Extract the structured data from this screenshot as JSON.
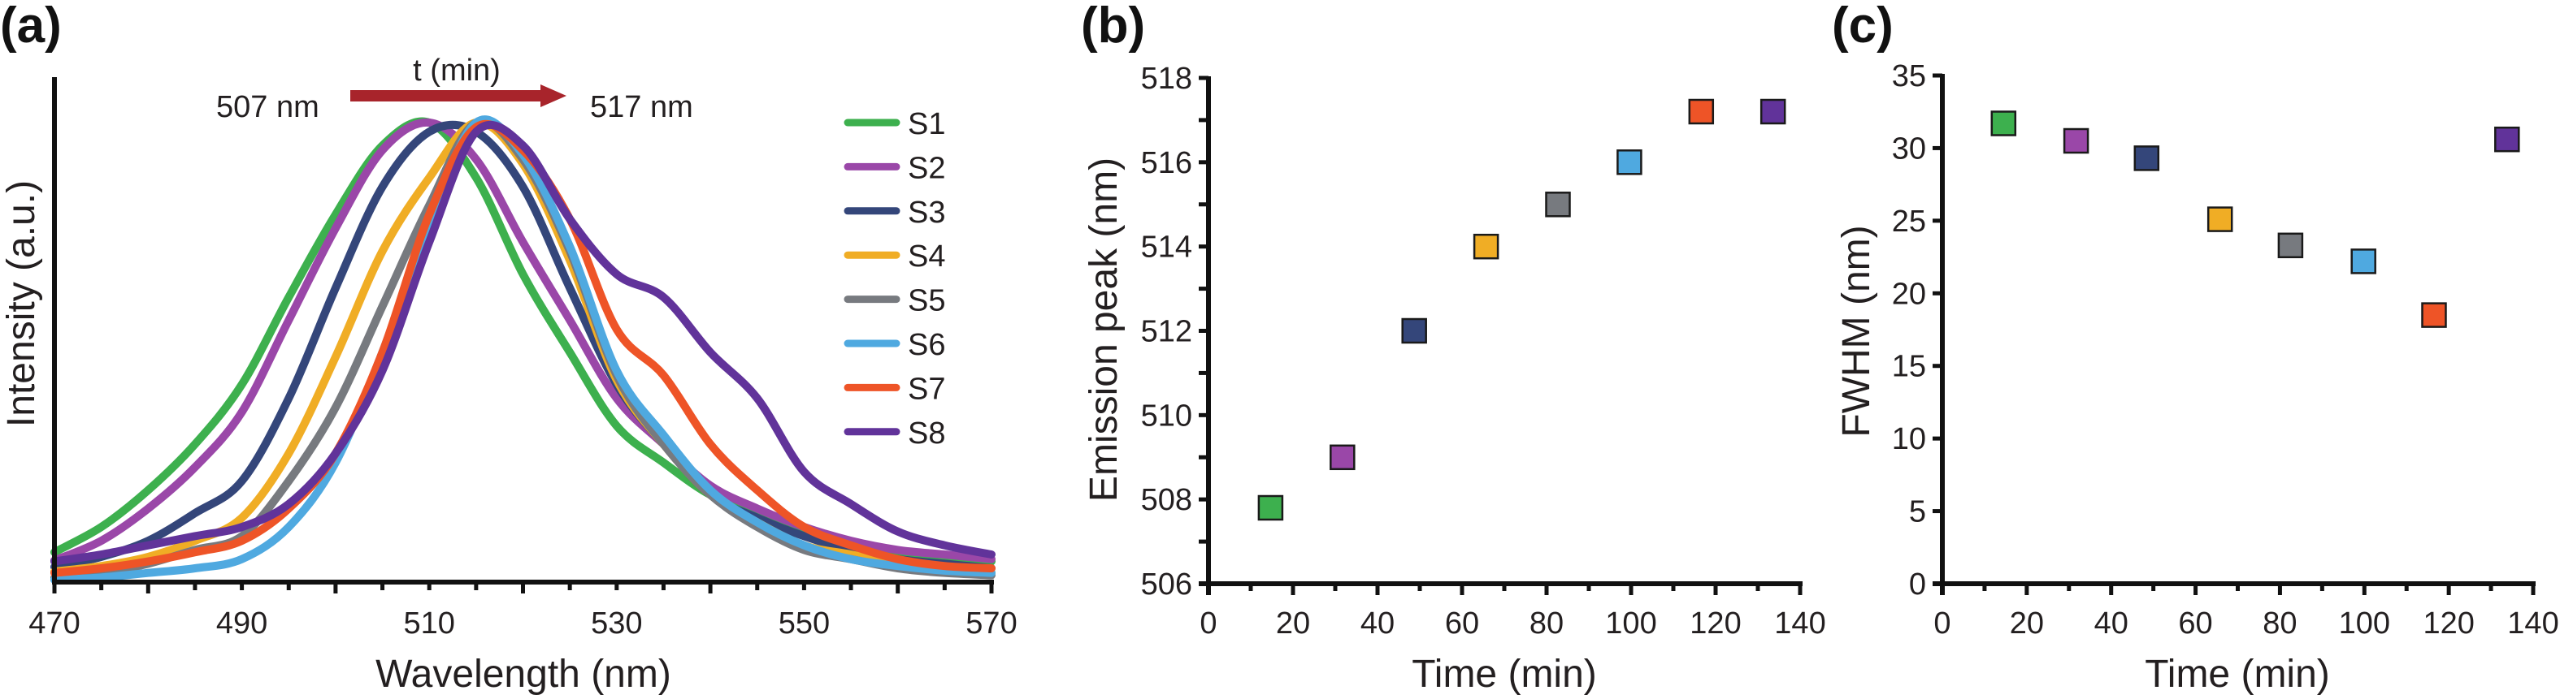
{
  "panels": {
    "a": {
      "label": "(a)"
    },
    "b": {
      "label": "(b)"
    },
    "c": {
      "label": "(c)"
    }
  },
  "annotations": {
    "arrow_label": "t (min)",
    "start_label": "507 nm",
    "end_label": "517 nm",
    "arrow_color": "#a8242b"
  },
  "chart_data": [
    {
      "id": "a",
      "type": "line",
      "title": "",
      "xlabel": "Wavelength (nm)",
      "ylabel": "Intensity (a.u.)",
      "xlim": [
        470,
        570
      ],
      "ylim": [
        0,
        1
      ],
      "xticks": [
        470,
        490,
        510,
        530,
        550,
        570
      ],
      "xtick_labels": [
        "470",
        "490",
        "510",
        "530",
        "550",
        "570"
      ],
      "grid": false,
      "legend_position": "right",
      "x": [
        470,
        475,
        480,
        485,
        490,
        495,
        500,
        505,
        510,
        515,
        520,
        525,
        530,
        535,
        540,
        545,
        550,
        555,
        560,
        565,
        570
      ],
      "series": [
        {
          "name": "S1",
          "color": "#3db04e",
          "values": [
            0.065,
            0.12,
            0.2,
            0.3,
            0.43,
            0.62,
            0.8,
            0.95,
            1.0,
            0.88,
            0.67,
            0.5,
            0.34,
            0.26,
            0.19,
            0.15,
            0.11,
            0.085,
            0.065,
            0.055,
            0.045
          ]
        },
        {
          "name": "S2",
          "color": "#9a47a8",
          "values": [
            0.047,
            0.09,
            0.16,
            0.25,
            0.37,
            0.57,
            0.77,
            0.94,
            1.0,
            0.92,
            0.74,
            0.57,
            0.4,
            0.3,
            0.21,
            0.16,
            0.12,
            0.09,
            0.07,
            0.06,
            0.05
          ]
        },
        {
          "name": "S3",
          "color": "#34467a",
          "values": [
            0.033,
            0.055,
            0.09,
            0.15,
            0.22,
            0.4,
            0.64,
            0.86,
            0.98,
            0.98,
            0.86,
            0.64,
            0.43,
            0.3,
            0.19,
            0.14,
            0.1,
            0.07,
            0.05,
            0.04,
            0.03
          ]
        },
        {
          "name": "S4",
          "color": "#f0ad25",
          "values": [
            0.023,
            0.035,
            0.055,
            0.09,
            0.14,
            0.28,
            0.49,
            0.72,
            0.88,
            1.0,
            0.91,
            0.7,
            0.44,
            0.3,
            0.19,
            0.13,
            0.08,
            0.06,
            0.04,
            0.03,
            0.02
          ]
        },
        {
          "name": "S5",
          "color": "#777a7f",
          "values": [
            0.01,
            0.02,
            0.04,
            0.07,
            0.1,
            0.22,
            0.38,
            0.6,
            0.82,
            1.0,
            0.92,
            0.72,
            0.45,
            0.3,
            0.19,
            0.12,
            0.07,
            0.05,
            0.03,
            0.02,
            0.015
          ]
        },
        {
          "name": "S6",
          "color": "#4fa9e0",
          "values": [
            0.005,
            0.01,
            0.02,
            0.03,
            0.05,
            0.12,
            0.26,
            0.5,
            0.78,
            1.0,
            0.93,
            0.73,
            0.46,
            0.32,
            0.2,
            0.13,
            0.08,
            0.05,
            0.035,
            0.025,
            0.02
          ]
        },
        {
          "name": "S7",
          "color": "#ee5427",
          "values": [
            0.02,
            0.03,
            0.045,
            0.065,
            0.09,
            0.16,
            0.28,
            0.5,
            0.8,
            0.99,
            0.94,
            0.79,
            0.55,
            0.45,
            0.3,
            0.2,
            0.12,
            0.08,
            0.05,
            0.035,
            0.03
          ]
        },
        {
          "name": "S8",
          "color": "#61339a",
          "values": [
            0.045,
            0.06,
            0.08,
            0.1,
            0.12,
            0.17,
            0.28,
            0.46,
            0.74,
            0.98,
            0.95,
            0.79,
            0.67,
            0.62,
            0.5,
            0.4,
            0.24,
            0.17,
            0.11,
            0.08,
            0.06
          ]
        }
      ]
    },
    {
      "id": "b",
      "type": "scatter",
      "title": "",
      "xlabel": "Time (min)",
      "ylabel": "Emission peak (nm)",
      "xlim": [
        0,
        140
      ],
      "ylim": [
        506,
        518
      ],
      "xticks": [
        0,
        20,
        40,
        60,
        80,
        100,
        120,
        140
      ],
      "xtick_labels": [
        "0",
        "20",
        "40",
        "60",
        "80",
        "100",
        "120",
        "140"
      ],
      "yticks": [
        506,
        508,
        510,
        512,
        514,
        516,
        518
      ],
      "ytick_labels": [
        "506",
        "508",
        "510",
        "512",
        "514",
        "516",
        "518"
      ],
      "grid": false,
      "points": [
        {
          "name": "S1",
          "x": 14.7,
          "y": 507.8,
          "color": "#3db04e"
        },
        {
          "name": "S2",
          "x": 31.7,
          "y": 509.0,
          "color": "#9a47a8"
        },
        {
          "name": "S3",
          "x": 48.7,
          "y": 512.0,
          "color": "#34467a"
        },
        {
          "name": "S4",
          "x": 65.7,
          "y": 514.0,
          "color": "#f0ad25"
        },
        {
          "name": "S5",
          "x": 82.7,
          "y": 515.0,
          "color": "#777a7f"
        },
        {
          "name": "S6",
          "x": 99.6,
          "y": 516.0,
          "color": "#4fa9e0"
        },
        {
          "name": "S7",
          "x": 116.6,
          "y": 517.2,
          "color": "#ee5427"
        },
        {
          "name": "S8",
          "x": 133.6,
          "y": 517.2,
          "color": "#61339a"
        }
      ]
    },
    {
      "id": "c",
      "type": "scatter",
      "title": "",
      "xlabel": "Time (min)",
      "ylabel": "FWHM (nm)",
      "xlim": [
        0,
        140
      ],
      "ylim": [
        0,
        35
      ],
      "xticks": [
        0,
        20,
        40,
        60,
        80,
        100,
        120,
        140
      ],
      "xtick_labels": [
        "0",
        "20",
        "40",
        "60",
        "80",
        "100",
        "120",
        "140"
      ],
      "yticks": [
        0,
        5,
        10,
        15,
        20,
        25,
        30,
        35
      ],
      "ytick_labels": [
        "0",
        "5",
        "10",
        "15",
        "20",
        "25",
        "30",
        "35"
      ],
      "grid": false,
      "points": [
        {
          "name": "S1",
          "x": 14.5,
          "y": 31.7,
          "color": "#3db04e"
        },
        {
          "name": "S2",
          "x": 31.7,
          "y": 30.5,
          "color": "#9a47a8"
        },
        {
          "name": "S3",
          "x": 48.4,
          "y": 29.3,
          "color": "#34467a"
        },
        {
          "name": "S4",
          "x": 65.8,
          "y": 25.1,
          "color": "#f0ad25"
        },
        {
          "name": "S5",
          "x": 82.5,
          "y": 23.3,
          "color": "#777a7f"
        },
        {
          "name": "S6",
          "x": 99.8,
          "y": 22.2,
          "color": "#4fa9e0"
        },
        {
          "name": "S7",
          "x": 116.5,
          "y": 18.5,
          "color": "#ee5427"
        },
        {
          "name": "S8",
          "x": 133.8,
          "y": 30.6,
          "color": "#61339a"
        }
      ]
    }
  ]
}
